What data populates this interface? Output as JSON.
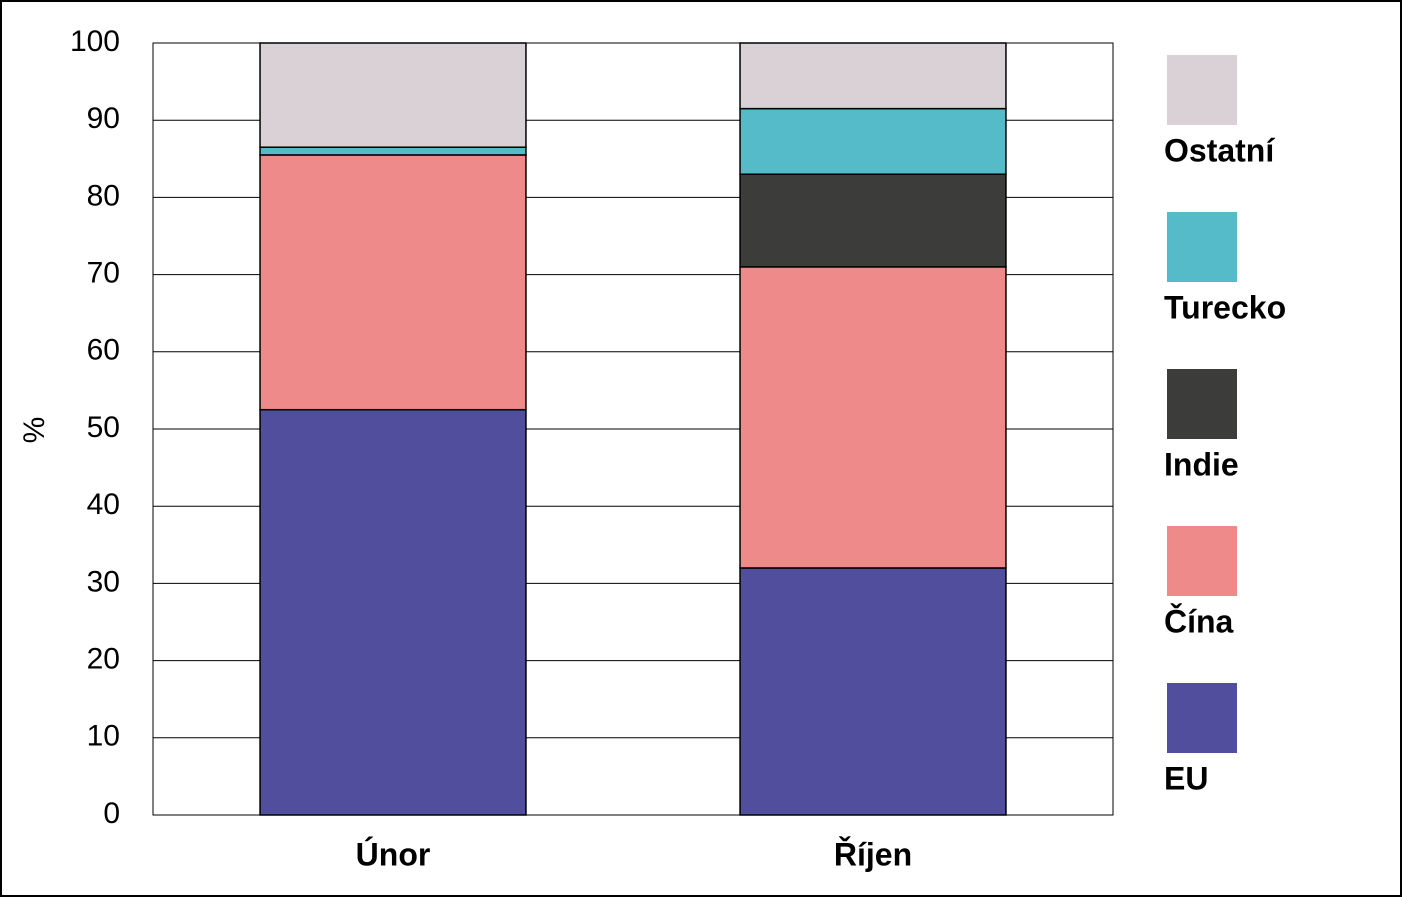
{
  "chart_data": {
    "type": "stacked-bar",
    "y_label": "%",
    "categories": [
      "Únor",
      "Říjen"
    ],
    "series": [
      {
        "name": "EU",
        "color": "#524e9e",
        "values": [
          52.5,
          32
        ]
      },
      {
        "name": "Čína",
        "color": "#ee8a8a",
        "values": [
          33,
          39
        ]
      },
      {
        "name": "Indie",
        "color": "#3c3c3b",
        "values": [
          0,
          12
        ]
      },
      {
        "name": "Turecko",
        "color": "#56bbc8",
        "values": [
          1,
          8.5
        ]
      },
      {
        "name": "Ostatní",
        "color": "#d9d1d6",
        "values": [
          13.5,
          8.5
        ]
      }
    ],
    "ylim": [
      0,
      100
    ],
    "yticks": [
      0,
      10,
      20,
      30,
      40,
      50,
      60,
      70,
      80,
      90,
      100
    ],
    "grid": true,
    "legend": "right"
  }
}
